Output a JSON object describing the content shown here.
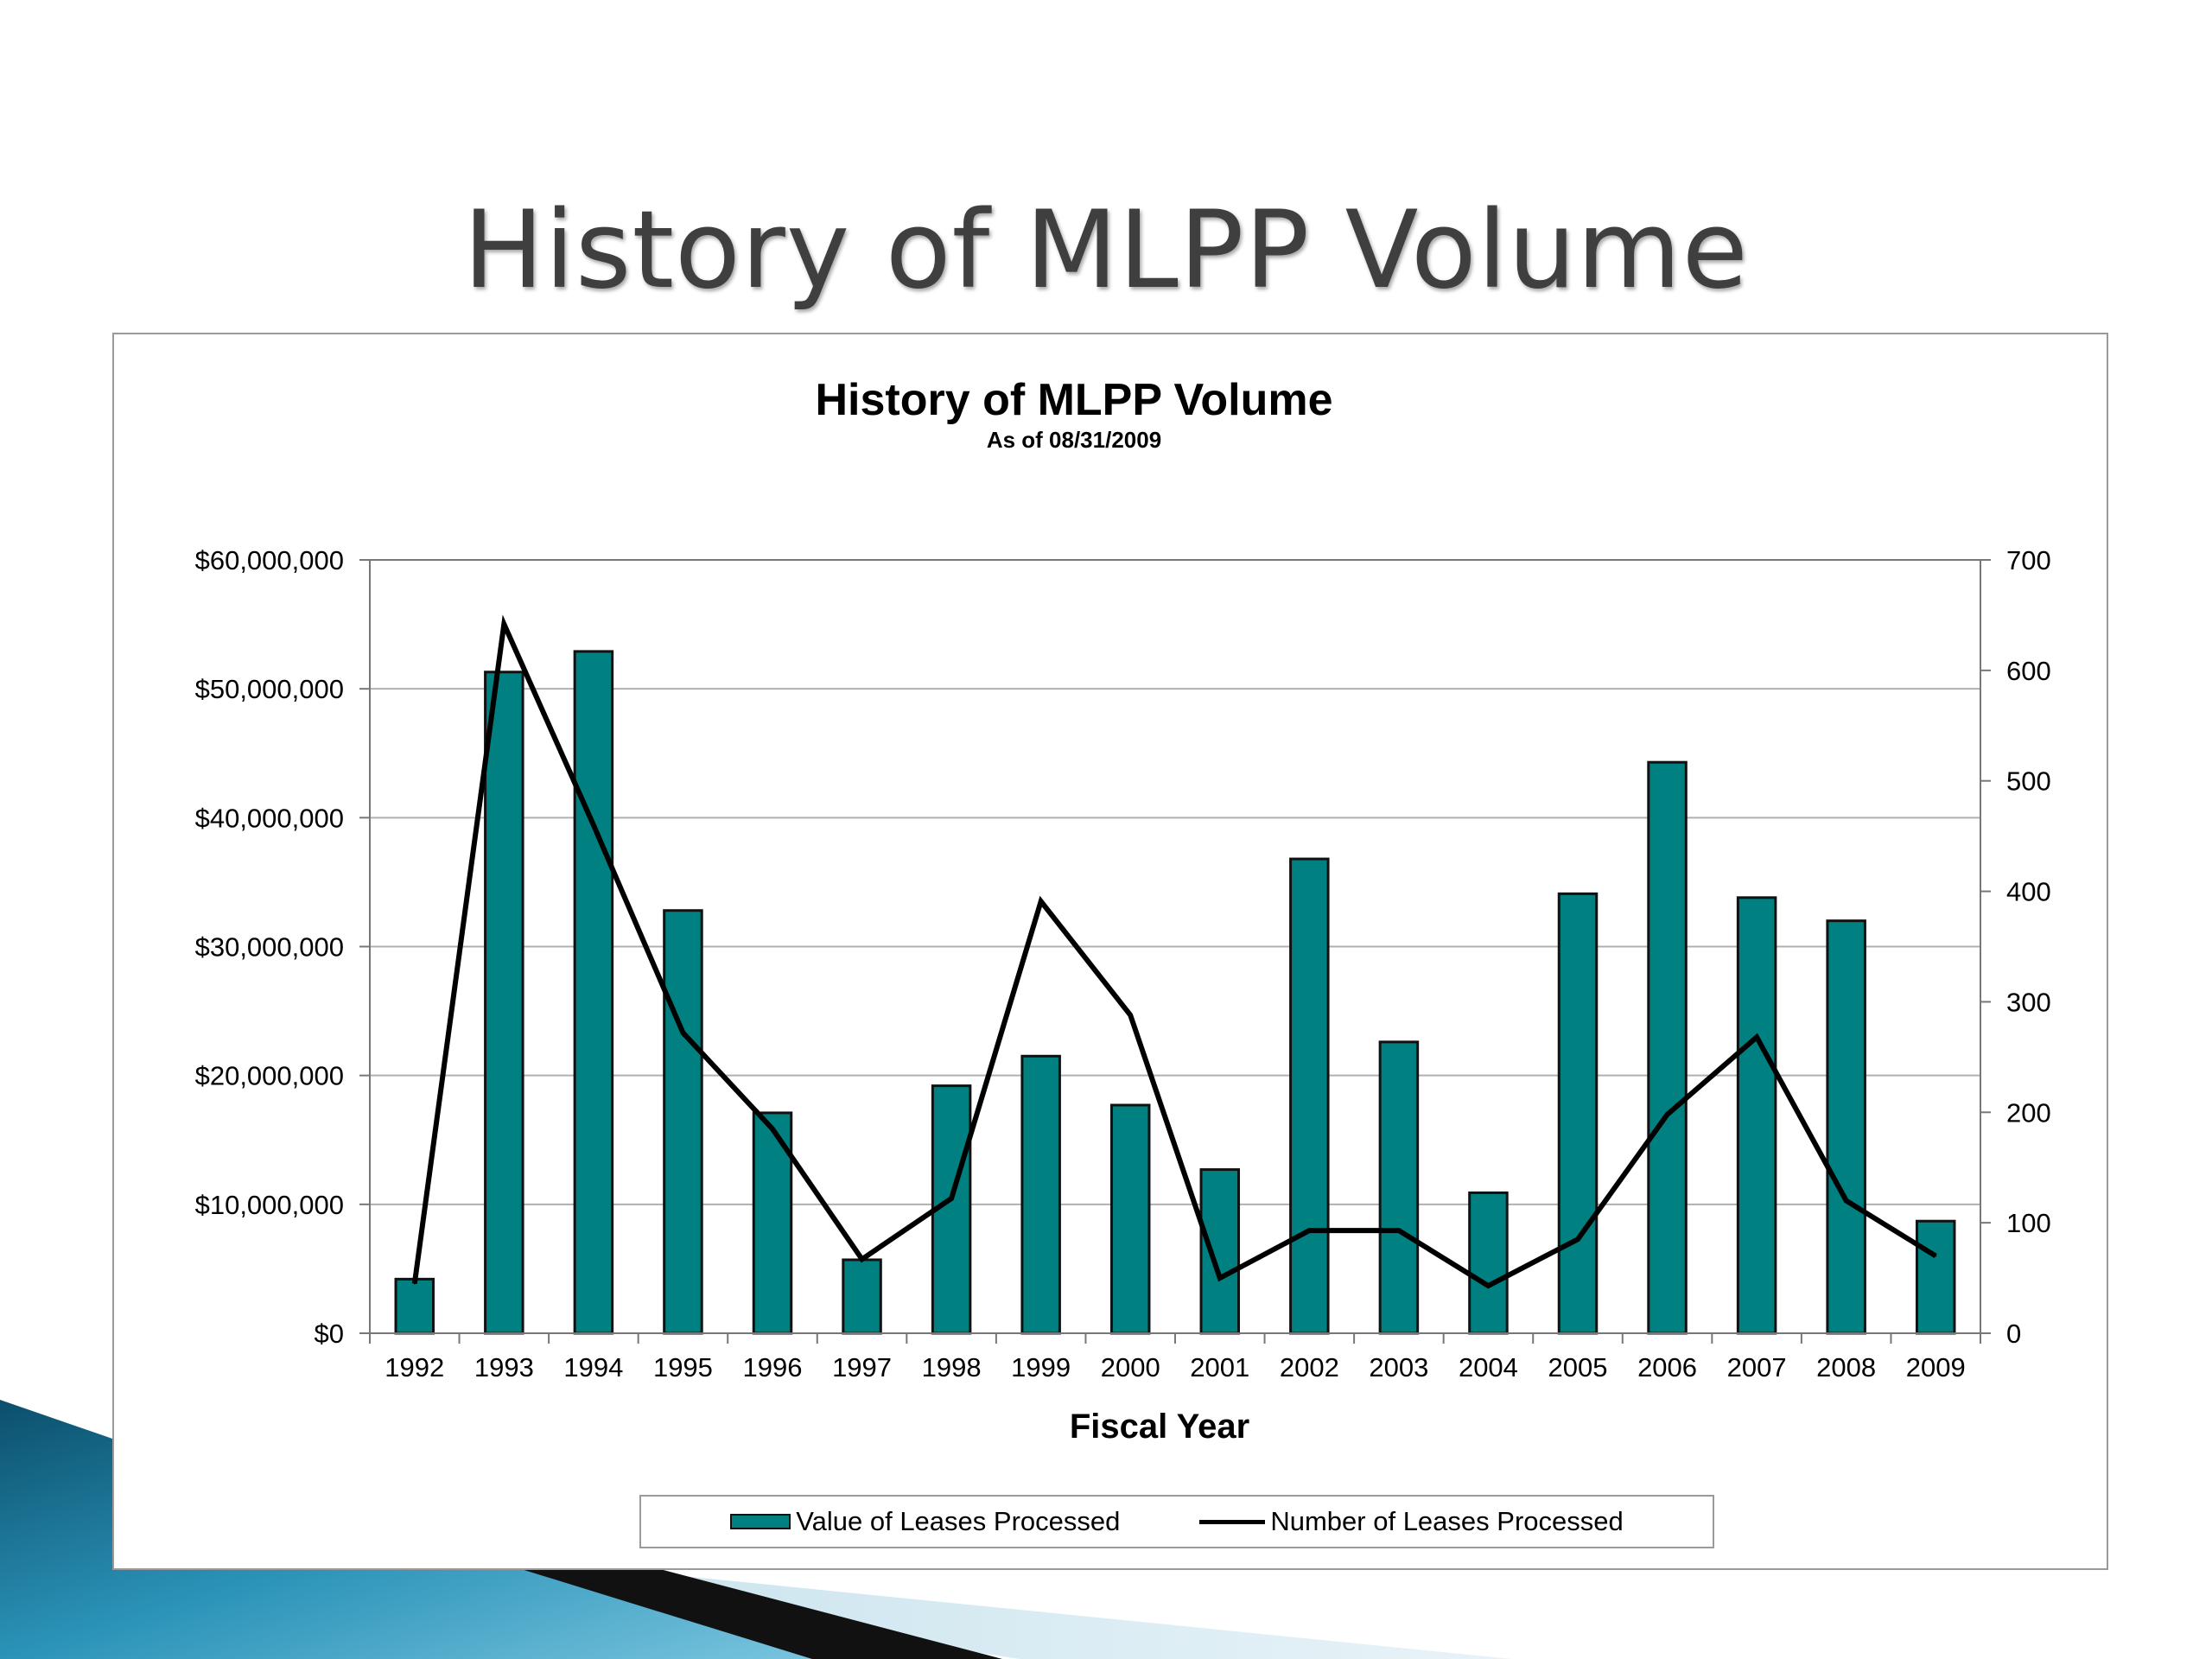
{
  "slide": {
    "title": "History of MLPP Volume"
  },
  "colors": {
    "bar_fill": "#008080",
    "bar_stroke": "#111111",
    "line": "#000000",
    "grid": "#b0b0b0",
    "deco_blue": "#1e7fa3"
  },
  "chart_data": {
    "type": "bar",
    "title": "History of MLPP Volume",
    "subtitle": "As of 08/31/2009",
    "xlabel": "Fiscal Year",
    "ylabel": "",
    "y2label": "",
    "categories": [
      "1992",
      "1993",
      "1994",
      "1995",
      "1996",
      "1997",
      "1998",
      "1999",
      "2000",
      "2001",
      "2002",
      "2003",
      "2004",
      "2005",
      "2006",
      "2007",
      "2008",
      "2009"
    ],
    "ylim": [
      0,
      60000000
    ],
    "y2lim": [
      0,
      700
    ],
    "y_ticks": [
      0,
      10000000,
      20000000,
      30000000,
      40000000,
      50000000,
      60000000
    ],
    "y_tick_labels": [
      "$0",
      "$10,000,000",
      "$20,000,000",
      "$30,000,000",
      "$40,000,000",
      "$50,000,000",
      "$60,000,000"
    ],
    "y2_ticks": [
      0,
      100,
      200,
      300,
      400,
      500,
      600,
      700
    ],
    "y2_tick_labels": [
      "0",
      "100",
      "200",
      "300",
      "400",
      "500",
      "600",
      "700"
    ],
    "grid": true,
    "legend_position": "bottom",
    "series": [
      {
        "name": "Value of Leases Processed",
        "kind": "bar",
        "axis": "left",
        "values": [
          4200000,
          51300000,
          52900000,
          32800000,
          17100000,
          5700000,
          19200000,
          21500000,
          17700000,
          12700000,
          36800000,
          22600000,
          10900000,
          34100000,
          44300000,
          33800000,
          32000000,
          8700000
        ]
      },
      {
        "name": "Number of Leases Processed",
        "kind": "line",
        "axis": "right",
        "values": [
          45,
          642,
          460,
          272,
          185,
          67,
          122,
          391,
          288,
          50,
          93,
          93,
          43,
          85,
          198,
          268,
          120,
          70
        ]
      }
    ]
  }
}
